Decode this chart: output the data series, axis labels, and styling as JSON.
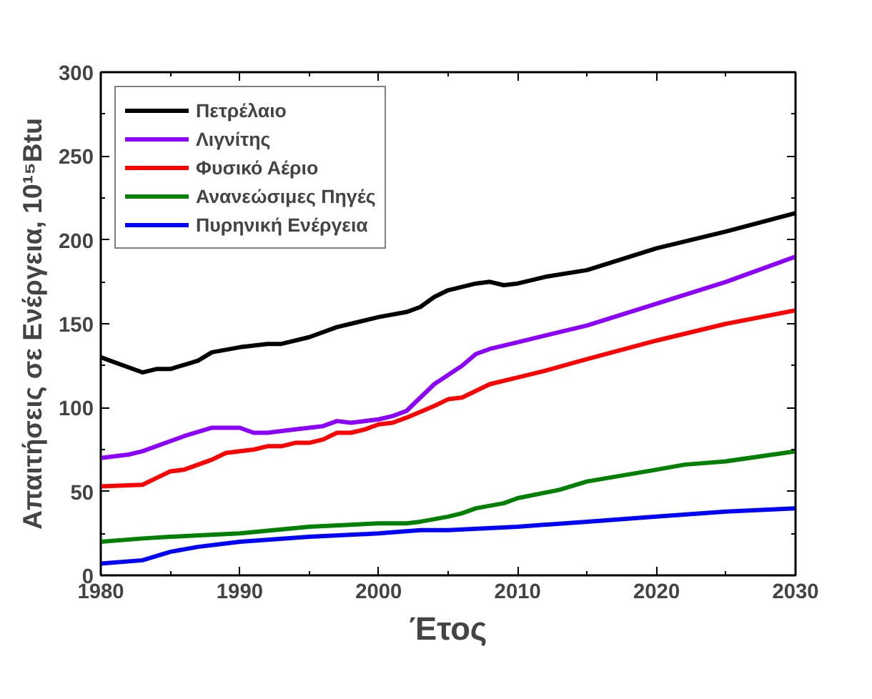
{
  "chart_data": {
    "type": "line",
    "xlabel": "Έτος",
    "ylabel": "Απαιτήσεις σε Ενέργεια, 10¹⁵Btu",
    "xlim": [
      1980,
      2030
    ],
    "xticks": [
      1980,
      1990,
      2000,
      2010,
      2020,
      2030
    ],
    "ylim": [
      0,
      300
    ],
    "yticks": [
      0,
      50,
      100,
      150,
      200,
      250,
      300
    ],
    "grid": false,
    "legend": "top left",
    "line_style": "solid",
    "marker": "none",
    "series": [
      {
        "name": "Πετρέλαιο",
        "color": "#000000",
        "x": [
          1980,
          1983,
          1984,
          1985,
          1987,
          1988,
          1990,
          1992,
          1993,
          1995,
          1997,
          1998,
          2000,
          2002,
          2003,
          2004,
          2005,
          2007,
          2008,
          2009,
          2010,
          2012,
          2015,
          2020,
          2025,
          2030
        ],
        "values": [
          130,
          121,
          123,
          123,
          128,
          133,
          136,
          138,
          138,
          142,
          148,
          150,
          154,
          157,
          160,
          166,
          170,
          174,
          175,
          173,
          174,
          178,
          182,
          195,
          205,
          216
        ]
      },
      {
        "name": "Λιγνίτης",
        "color": "#8b00ff",
        "x": [
          1980,
          1982,
          1983,
          1985,
          1986,
          1988,
          1990,
          1991,
          1992,
          1994,
          1996,
          1997,
          1998,
          2000,
          2001,
          2002,
          2004,
          2006,
          2007,
          2008,
          2010,
          2012,
          2015,
          2020,
          2025,
          2030
        ],
        "values": [
          70,
          72,
          74,
          80,
          83,
          88,
          88,
          85,
          85,
          87,
          89,
          92,
          91,
          93,
          95,
          98,
          114,
          125,
          132,
          135,
          139,
          143,
          149,
          162,
          175,
          190
        ]
      },
      {
        "name": "Φυσικό Αέριο",
        "color": "#ff0000",
        "x": [
          1980,
          1983,
          1984,
          1985,
          1986,
          1988,
          1989,
          1991,
          1992,
          1993,
          1994,
          1995,
          1996,
          1997,
          1998,
          1999,
          2000,
          2001,
          2002,
          2004,
          2005,
          2006,
          2008,
          2010,
          2012,
          2015,
          2020,
          2025,
          2030
        ],
        "values": [
          53,
          54,
          58,
          62,
          63,
          69,
          73,
          75,
          77,
          77,
          79,
          79,
          81,
          85,
          85,
          87,
          90,
          91,
          94,
          101,
          105,
          106,
          114,
          118,
          122,
          129,
          140,
          150,
          158
        ]
      },
      {
        "name": "Ανανεώσιμες Πηγές",
        "color": "#008000",
        "x": [
          1980,
          1983,
          1985,
          1990,
          1995,
          2000,
          2002,
          2003,
          2005,
          2006,
          2007,
          2009,
          2010,
          2013,
          2015,
          2020,
          2022,
          2025,
          2030
        ],
        "values": [
          20,
          22,
          23,
          25,
          29,
          31,
          31,
          32,
          35,
          37,
          40,
          43,
          46,
          51,
          56,
          63,
          66,
          68,
          74
        ]
      },
      {
        "name": "Πυρηνική Ενέργεια",
        "color": "#0000ff",
        "x": [
          1980,
          1983,
          1985,
          1987,
          1990,
          1995,
          2000,
          2003,
          2005,
          2010,
          2015,
          2020,
          2025,
          2030
        ],
        "values": [
          7,
          9,
          14,
          17,
          20,
          23,
          25,
          27,
          27,
          29,
          32,
          35,
          38,
          40
        ]
      }
    ]
  }
}
